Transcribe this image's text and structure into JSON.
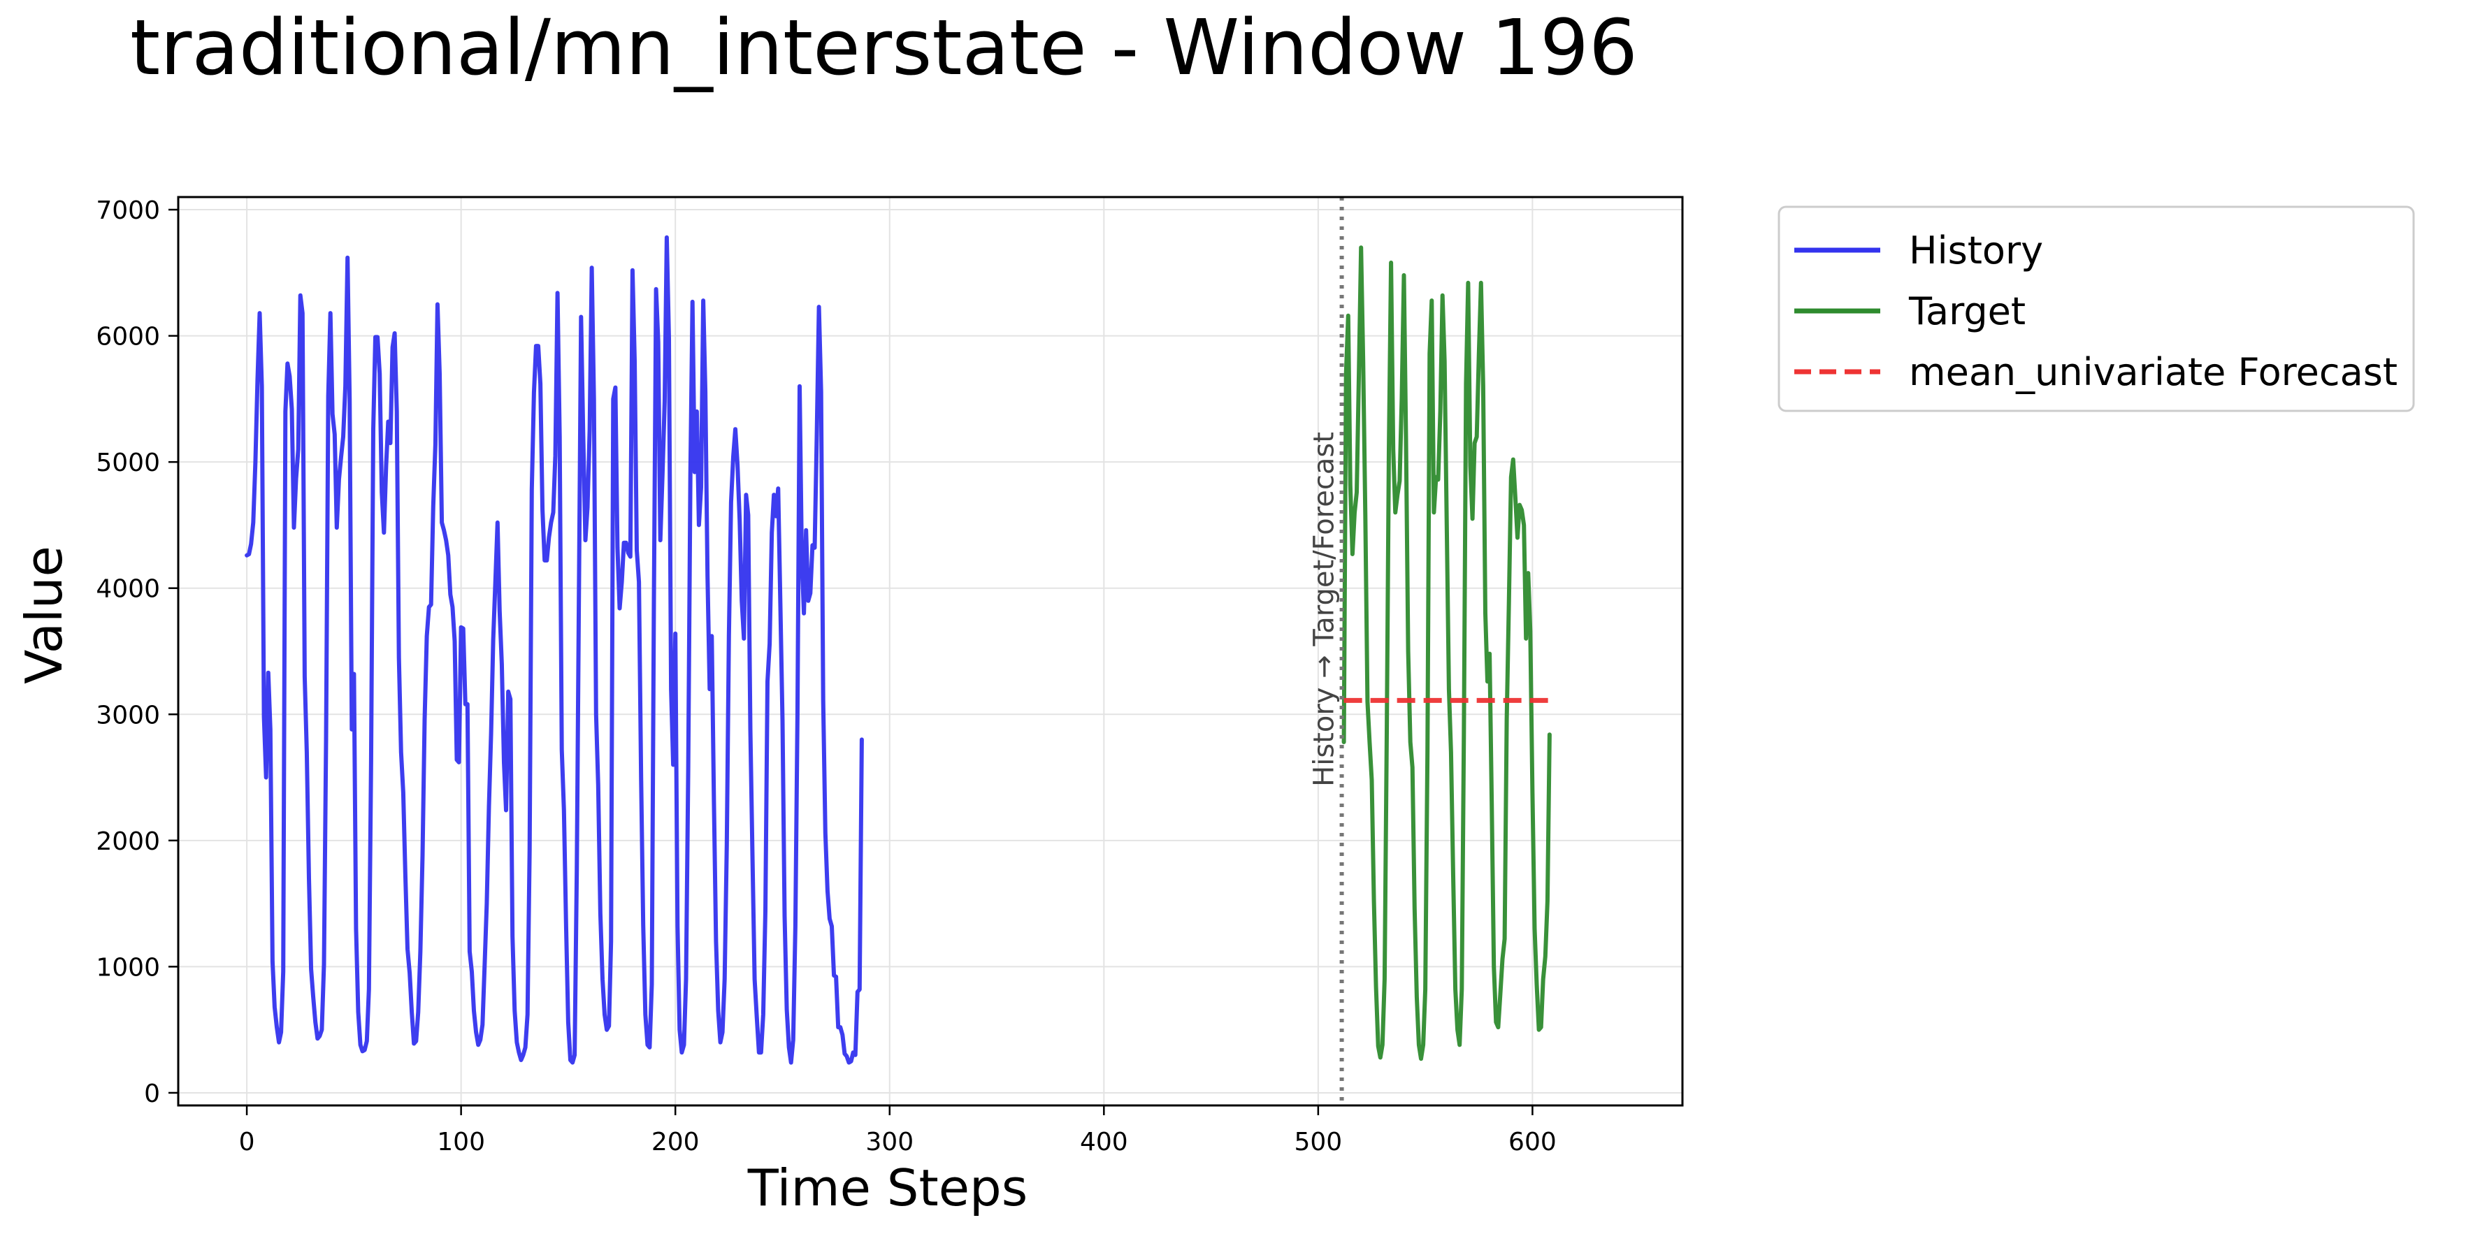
{
  "chart_data": {
    "type": "line",
    "title": "traditional/mn_interstate - Window 196",
    "xlabel": "Time Steps",
    "ylabel": "Value",
    "xlim": [
      -32,
      670
    ],
    "ylim": [
      -100,
      7100
    ],
    "xticks": [
      0,
      100,
      200,
      300,
      400,
      500,
      600
    ],
    "yticks": [
      0,
      1000,
      2000,
      3000,
      4000,
      5000,
      6000,
      7000
    ],
    "grid": true,
    "legend_position": "outside-top-right",
    "divider": {
      "x": 511,
      "label": "History → Target/Forecast",
      "color": "#777777"
    },
    "series": [
      {
        "name": "History",
        "color": "#3333ee",
        "style": "solid",
        "x_start": 0,
        "values": [
          4260,
          4270,
          4350,
          4520,
          5000,
          5650,
          6180,
          5600,
          2980,
          2500,
          3330,
          2880,
          1040,
          680,
          520,
          400,
          480,
          960,
          5400,
          5780,
          5680,
          5420,
          4480,
          4870,
          5100,
          6320,
          6180,
          3300,
          2700,
          1700,
          980,
          760,
          560,
          430,
          450,
          500,
          1020,
          2800,
          5520,
          6180,
          5380,
          5220,
          4480,
          4860,
          5040,
          5200,
          5600,
          6620,
          5500,
          2880,
          3320,
          1300,
          640,
          380,
          330,
          340,
          410,
          820,
          2620,
          5260,
          5990,
          5990,
          5700,
          4760,
          4440,
          4970,
          5320,
          5150,
          5910,
          6020,
          5400,
          3450,
          2700,
          2380,
          1730,
          1140,
          950,
          640,
          390,
          410,
          640,
          1120,
          1880,
          2960,
          3620,
          3850,
          3870,
          4650,
          5140,
          6250,
          5700,
          4520,
          4460,
          4380,
          4260,
          3950,
          3850,
          3580,
          2640,
          2620,
          3690,
          3680,
          3080,
          3080,
          1120,
          960,
          650,
          480,
          380,
          420,
          540,
          1020,
          1500,
          2270,
          2850,
          3590,
          4050,
          4520,
          3820,
          3400,
          2620,
          2240,
          3180,
          3120,
          1240,
          650,
          400,
          320,
          260,
          300,
          360,
          620,
          1920,
          4780,
          5550,
          5920,
          5920,
          5620,
          4620,
          4220,
          4220,
          4400,
          4520,
          4600,
          5050,
          6340,
          5200,
          2720,
          2240,
          1320,
          560,
          260,
          240,
          300,
          1760,
          4000,
          6150,
          5200,
          4380,
          4640,
          5250,
          6540,
          5500,
          3000,
          2440,
          1420,
          900,
          620,
          500,
          530,
          1200,
          5500,
          5590,
          4320,
          3840,
          4050,
          4360,
          4360,
          4280,
          4250,
          6520,
          5800,
          4300,
          4050,
          2500,
          1330,
          620,
          380,
          360,
          860,
          3900,
          6370,
          5950,
          4380,
          4900,
          5480,
          6780,
          5980,
          3200,
          2600,
          3640,
          1320,
          500,
          320,
          380,
          900,
          2560,
          4900,
          6270,
          4920,
          5400,
          4500,
          4800,
          6280,
          5560,
          4100,
          3200,
          3620,
          2300,
          1200,
          650,
          400,
          480,
          900,
          1970,
          3620,
          4680,
          5040,
          5260,
          4980,
          4540,
          3900,
          3600,
          4740,
          4580,
          2880,
          1850,
          900,
          600,
          320,
          320,
          620,
          1440,
          3260,
          3560,
          4440,
          4740,
          4570,
          4790,
          3880,
          2950,
          1400,
          660,
          360,
          240,
          420,
          1320,
          3000,
          5600,
          4240,
          3800,
          4460,
          3900,
          3960,
          4340,
          4320,
          5200,
          6230,
          5560,
          3110,
          2060,
          1600,
          1380,
          1320,
          930,
          920,
          520,
          520,
          460,
          310,
          290,
          240,
          250,
          320,
          300,
          800,
          820,
          2800
        ]
      },
      {
        "name": "Target",
        "color": "#2e8b2e",
        "style": "solid",
        "x_start": 512,
        "values": [
          2780,
          5700,
          6160,
          4820,
          4270,
          4600,
          4760,
          5700,
          6700,
          5800,
          4580,
          3100,
          2780,
          2480,
          1520,
          840,
          370,
          280,
          380,
          900,
          2860,
          5100,
          6580,
          5100,
          4600,
          4740,
          4850,
          5500,
          6480,
          5180,
          3500,
          2780,
          2580,
          1460,
          760,
          380,
          270,
          380,
          820,
          2700,
          5860,
          6280,
          4600,
          4880,
          4860,
          5400,
          6320,
          5800,
          4500,
          3200,
          2700,
          1720,
          820,
          500,
          380,
          820,
          2840,
          5620,
          6420,
          4970,
          4550,
          5150,
          5200,
          5860,
          6420,
          5600,
          3800,
          3260,
          3480,
          2280,
          1000,
          560,
          520,
          780,
          1060,
          1220,
          2960,
          3880,
          4880,
          5020,
          4720,
          4400,
          4660,
          4620,
          4500,
          3600,
          4120,
          3660,
          2380,
          1300,
          860,
          500,
          520,
          900,
          1080,
          1520,
          2840
        ]
      },
      {
        "name": "mean_univariate Forecast",
        "color": "#ee3333",
        "style": "dashed",
        "x_start": 512,
        "values": [
          3110,
          3110
        ]
      }
    ]
  }
}
